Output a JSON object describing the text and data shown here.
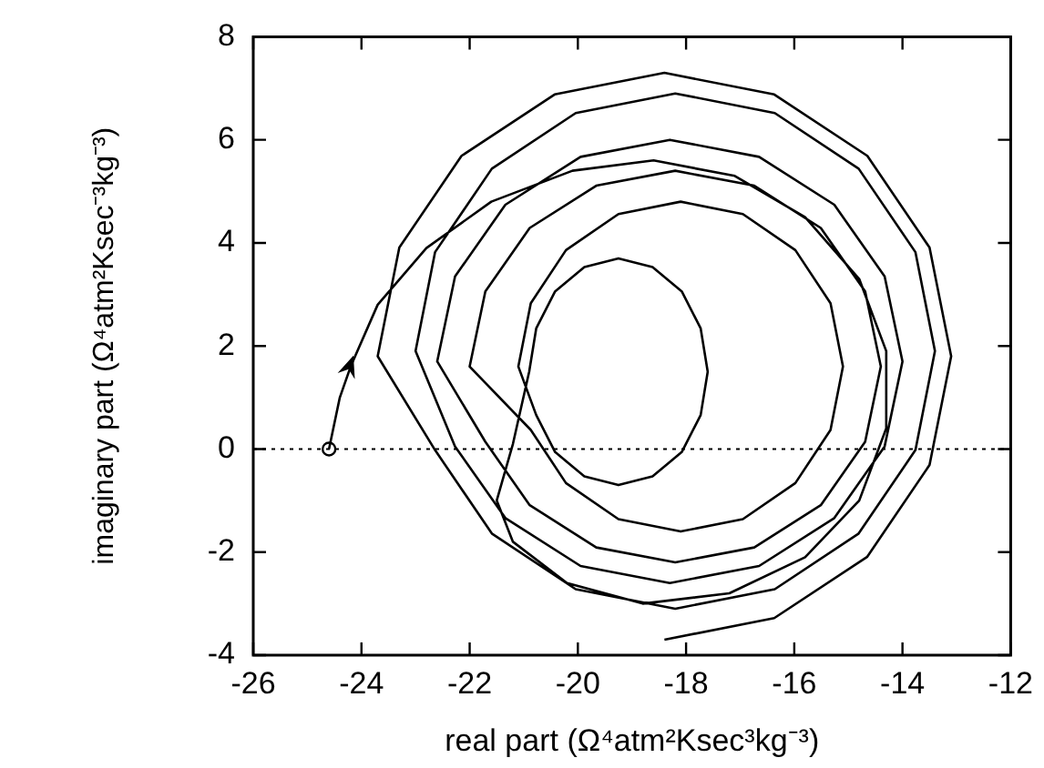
{
  "chart_data": {
    "type": "line",
    "xlabel": "real part (Ω⁴atm²Ksec³kg⁻³)",
    "ylabel": "imaginary part (Ω⁴atm²Ksec⁻³kg⁻³)",
    "xlim": [
      -26,
      -12
    ],
    "xticks": [
      -26,
      -24,
      -22,
      -20,
      -18,
      -16,
      -14,
      -12
    ],
    "ylim": [
      -4,
      8
    ],
    "yticks": [
      -4,
      -2,
      0,
      2,
      4,
      6,
      8
    ],
    "grid": false,
    "legend": false,
    "marker": "none",
    "line_style": "solid",
    "ref_lines": [
      {
        "axis": "y",
        "value": 0,
        "line_style": "dotted",
        "color": "#000000"
      }
    ],
    "series": [
      {
        "type": "line",
        "color": "#000000",
        "x": [
          -24.6,
          -24.4,
          -24.2,
          -23.7,
          -22.8,
          -21.6,
          -20.1,
          -18.6,
          -17.1,
          -15.8,
          -14.8,
          -14.3,
          -14.3,
          -14.8,
          -15.8,
          -17.2,
          -18.8,
          -20.2,
          -21.2,
          -21.5,
          -21.2,
          -20.9,
          -20.77,
          -20.42,
          -19.88,
          -19.25,
          -18.62,
          -18.08,
          -17.73,
          -17.6,
          -17.73,
          -18.08,
          -18.62,
          -19.25,
          -19.88,
          -20.42,
          -20.77,
          -21.1,
          -20.87,
          -20.22,
          -19.25,
          -18.1,
          -16.95,
          -15.98,
          -15.33,
          -15.1,
          -15.33,
          -15.98,
          -16.95,
          -18.1,
          -19.25,
          -20.22,
          -20.87,
          -22.0,
          -21.71,
          -20.89,
          -19.66,
          -18.2,
          -16.74,
          -15.51,
          -14.69,
          -14.4,
          -14.69,
          -15.51,
          -16.74,
          -18.2,
          -19.66,
          -20.89,
          -21.71,
          -22.6,
          -22.27,
          -21.34,
          -19.95,
          -18.3,
          -16.65,
          -15.26,
          -14.33,
          -14.0,
          -14.33,
          -15.26,
          -16.65,
          -18.3,
          -19.95,
          -21.34,
          -22.27,
          -23.0,
          -22.64,
          -21.59,
          -20.04,
          -18.2,
          -16.36,
          -14.81,
          -13.76,
          -13.4,
          -13.76,
          -14.81,
          -16.36,
          -18.2,
          -20.04,
          -21.59,
          -22.64,
          -23.7,
          -23.3,
          -22.15,
          -20.43,
          -18.4,
          -16.37,
          -14.65,
          -13.5,
          -13.1,
          -13.5,
          -14.65,
          -16.37,
          -18.4
        ],
        "values": [
          0,
          1.0,
          1.6,
          2.8,
          3.9,
          4.8,
          5.4,
          5.6,
          5.3,
          4.5,
          3.3,
          1.9,
          0.4,
          -1.0,
          -2.1,
          -2.8,
          -3.0,
          -2.6,
          -1.8,
          -1.0,
          0.1,
          1.5,
          2.34,
          3.06,
          3.53,
          3.7,
          3.53,
          3.06,
          2.34,
          1.5,
          0.66,
          -0.06,
          -0.53,
          -0.7,
          -0.53,
          -0.06,
          0.66,
          1.6,
          2.83,
          3.86,
          4.56,
          4.8,
          4.56,
          3.86,
          2.83,
          1.6,
          0.37,
          -0.66,
          -1.36,
          -1.6,
          -1.36,
          -0.66,
          0.37,
          1.6,
          3.06,
          4.29,
          5.11,
          5.4,
          5.11,
          4.29,
          3.06,
          1.6,
          0.14,
          -1.09,
          -1.91,
          -2.2,
          -1.91,
          -1.09,
          0.14,
          1.7,
          3.35,
          4.74,
          5.67,
          6.0,
          5.67,
          4.74,
          3.35,
          1.7,
          0.05,
          -1.34,
          -2.27,
          -2.6,
          -2.27,
          -1.34,
          0.05,
          1.9,
          3.82,
          5.44,
          6.52,
          6.9,
          6.52,
          5.44,
          3.82,
          1.9,
          -0.02,
          -1.64,
          -2.72,
          -3.1,
          -2.72,
          -1.64,
          -0.02,
          1.8,
          3.91,
          5.69,
          6.88,
          7.3,
          6.88,
          5.69,
          3.91,
          1.8,
          -0.31,
          -2.09,
          -3.28,
          -3.7
        ]
      },
      {
        "type": "scatter",
        "color": "#000000",
        "marker": "circle",
        "x": [
          -24.6
        ],
        "values": [
          0
        ]
      }
    ]
  }
}
